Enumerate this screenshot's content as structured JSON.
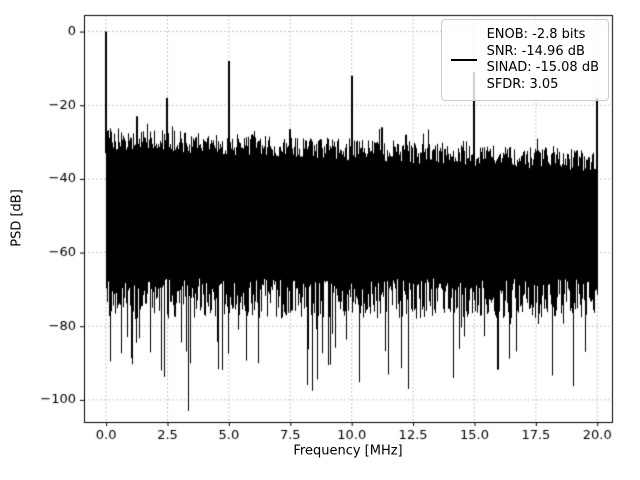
{
  "chart_data": {
    "type": "line",
    "title": "",
    "xlabel": "Frequency [MHz]",
    "ylabel": "PSD [dB]",
    "xlim": [
      -0.9,
      20.6
    ],
    "ylim": [
      -106,
      4.5
    ],
    "xticks": [
      0,
      2.5,
      5,
      7.5,
      10,
      12.5,
      15,
      17.5,
      20
    ],
    "xtick_labels": [
      "0.0",
      "2.5",
      "5.0",
      "7.5",
      "10.0",
      "12.5",
      "15.0",
      "17.5",
      "20.0"
    ],
    "yticks": [
      0,
      -20,
      -40,
      -60,
      -80,
      -100
    ],
    "ytick_labels": [
      "0",
      "−20",
      "−40",
      "−60",
      "−80",
      "−100"
    ],
    "grid": true,
    "grid_color": "#b0b0b0",
    "line_color": "#000000",
    "background": "#ffffff",
    "legend": {
      "position": "upper right",
      "entries": [
        "ENOB: -2.8 bits",
        "SNR: -14.96 dB",
        "SINAD: -15.08 dB",
        "SFDR: 3.05"
      ]
    },
    "signal": {
      "carrier": {
        "freq_mhz": 0.0,
        "level_db": 0
      },
      "spurs": [
        {
          "freq_mhz": 1.25,
          "level_db": -23
        },
        {
          "freq_mhz": 2.5,
          "level_db": -18
        },
        {
          "freq_mhz": 5.0,
          "level_db": -8
        },
        {
          "freq_mhz": 7.5,
          "level_db": -26.5
        },
        {
          "freq_mhz": 10.0,
          "level_db": -12
        },
        {
          "freq_mhz": 11.25,
          "level_db": -26
        },
        {
          "freq_mhz": 12.2,
          "level_db": -28
        },
        {
          "freq_mhz": 15.0,
          "level_db": -11
        },
        {
          "freq_mhz": 20.0,
          "level_db": -18
        }
      ],
      "noise_floor": {
        "top_db_start": -29,
        "top_db_end": -35,
        "bottom_db_typical": -75,
        "deep_notches": [
          {
            "freq_mhz": 3.35,
            "level_db": -103
          },
          {
            "freq_mhz": 12.3,
            "level_db": -97
          },
          {
            "freq_mhz": 2.25,
            "level_db": -92
          },
          {
            "freq_mhz": 8.6,
            "level_db": -90
          },
          {
            "freq_mhz": 16.4,
            "level_db": -88
          }
        ]
      }
    },
    "metrics": {
      "enob_bits": -2.8,
      "snr_db": -14.96,
      "sinad_db": -15.08,
      "sfdr": 3.05
    }
  }
}
